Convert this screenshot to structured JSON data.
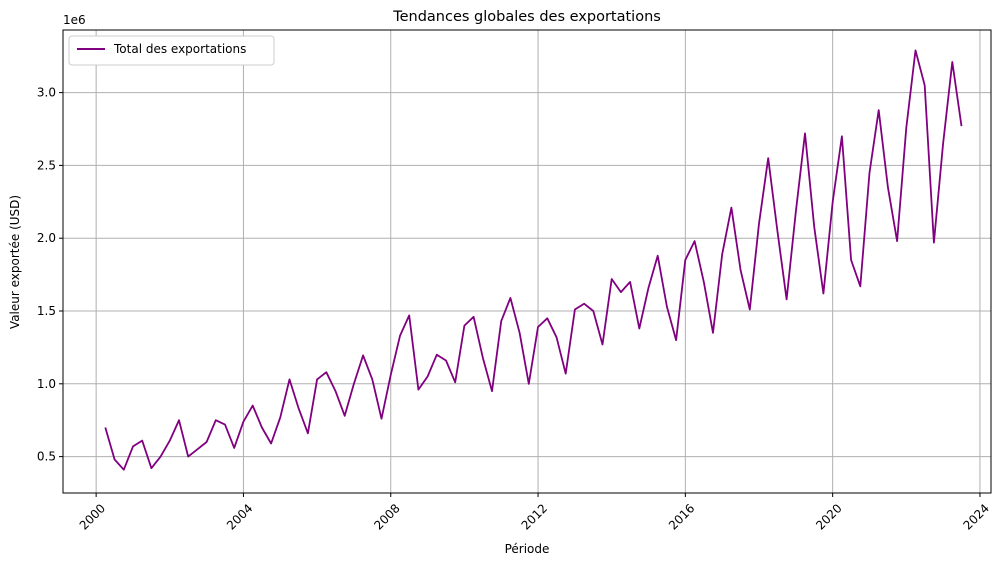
{
  "chart_data": {
    "type": "line",
    "title": "Tendances globales des exportations",
    "xlabel": "Période",
    "ylabel": "Valeur exportée (USD)",
    "y_offset_label": "1e6",
    "x_tick_labels": [
      "2000",
      "2004",
      "2008",
      "2012",
      "2016",
      "2020",
      "2024"
    ],
    "y_tick_labels": [
      "0.5",
      "1.0",
      "1.5",
      "2.0",
      "2.5",
      "3.0"
    ],
    "xlim": [
      1999.1,
      2024.3
    ],
    "ylim": [
      250000,
      3430000
    ],
    "grid": true,
    "legend_position": "upper-left",
    "series": [
      {
        "name": "Total des exportations",
        "color": "#800080",
        "x": [
          2000.25,
          2000.5,
          2000.75,
          2001.0,
          2001.25,
          2001.5,
          2001.75,
          2002.0,
          2002.25,
          2002.5,
          2002.75,
          2003.0,
          2003.25,
          2003.5,
          2003.75,
          2004.0,
          2004.25,
          2004.5,
          2004.75,
          2005.0,
          2005.25,
          2005.5,
          2005.75,
          2006.0,
          2006.25,
          2006.5,
          2006.75,
          2007.0,
          2007.25,
          2007.5,
          2007.75,
          2008.0,
          2008.25,
          2008.5,
          2008.75,
          2009.0,
          2009.25,
          2009.5,
          2009.75,
          2010.0,
          2010.25,
          2010.5,
          2010.75,
          2011.0,
          2011.25,
          2011.5,
          2011.75,
          2012.0,
          2012.25,
          2012.5,
          2012.75,
          2013.0,
          2013.25,
          2013.5,
          2013.75,
          2014.0,
          2014.25,
          2014.5,
          2014.75,
          2015.0,
          2015.25,
          2015.5,
          2015.75,
          2016.0,
          2016.25,
          2016.5,
          2016.75,
          2017.0,
          2017.25,
          2017.5,
          2017.75,
          2018.0,
          2018.25,
          2018.5,
          2018.75,
          2019.0,
          2019.25,
          2019.5,
          2019.75,
          2020.0,
          2020.25,
          2020.5,
          2020.75,
          2021.0,
          2021.25,
          2021.5,
          2021.75,
          2022.0,
          2022.25,
          2022.5,
          2022.75,
          2023.0,
          2023.25,
          2023.5
        ],
        "y": [
          700000,
          480000,
          410000,
          570000,
          610000,
          420000,
          500000,
          610000,
          750000,
          500000,
          550000,
          600000,
          750000,
          720000,
          560000,
          740000,
          850000,
          700000,
          590000,
          770000,
          1030000,
          830000,
          660000,
          1030000,
          1080000,
          950000,
          780000,
          1000000,
          1195000,
          1030000,
          760000,
          1060000,
          1330000,
          1470000,
          960000,
          1050000,
          1200000,
          1160000,
          1010000,
          1400000,
          1460000,
          1180000,
          950000,
          1430000,
          1590000,
          1350000,
          1000000,
          1390000,
          1450000,
          1320000,
          1070000,
          1510000,
          1550000,
          1500000,
          1270000,
          1720000,
          1630000,
          1700000,
          1380000,
          1660000,
          1880000,
          1530000,
          1300000,
          1850000,
          1980000,
          1700000,
          1350000,
          1890000,
          2210000,
          1780000,
          1510000,
          2100000,
          2550000,
          2050000,
          1580000,
          2180000,
          2720000,
          2080000,
          1620000,
          2250000,
          2700000,
          1850000,
          1670000,
          2450000,
          2880000,
          2350000,
          1980000,
          2760000,
          3290000,
          3050000,
          1970000,
          2650000,
          3210000,
          2770000
        ]
      }
    ]
  }
}
